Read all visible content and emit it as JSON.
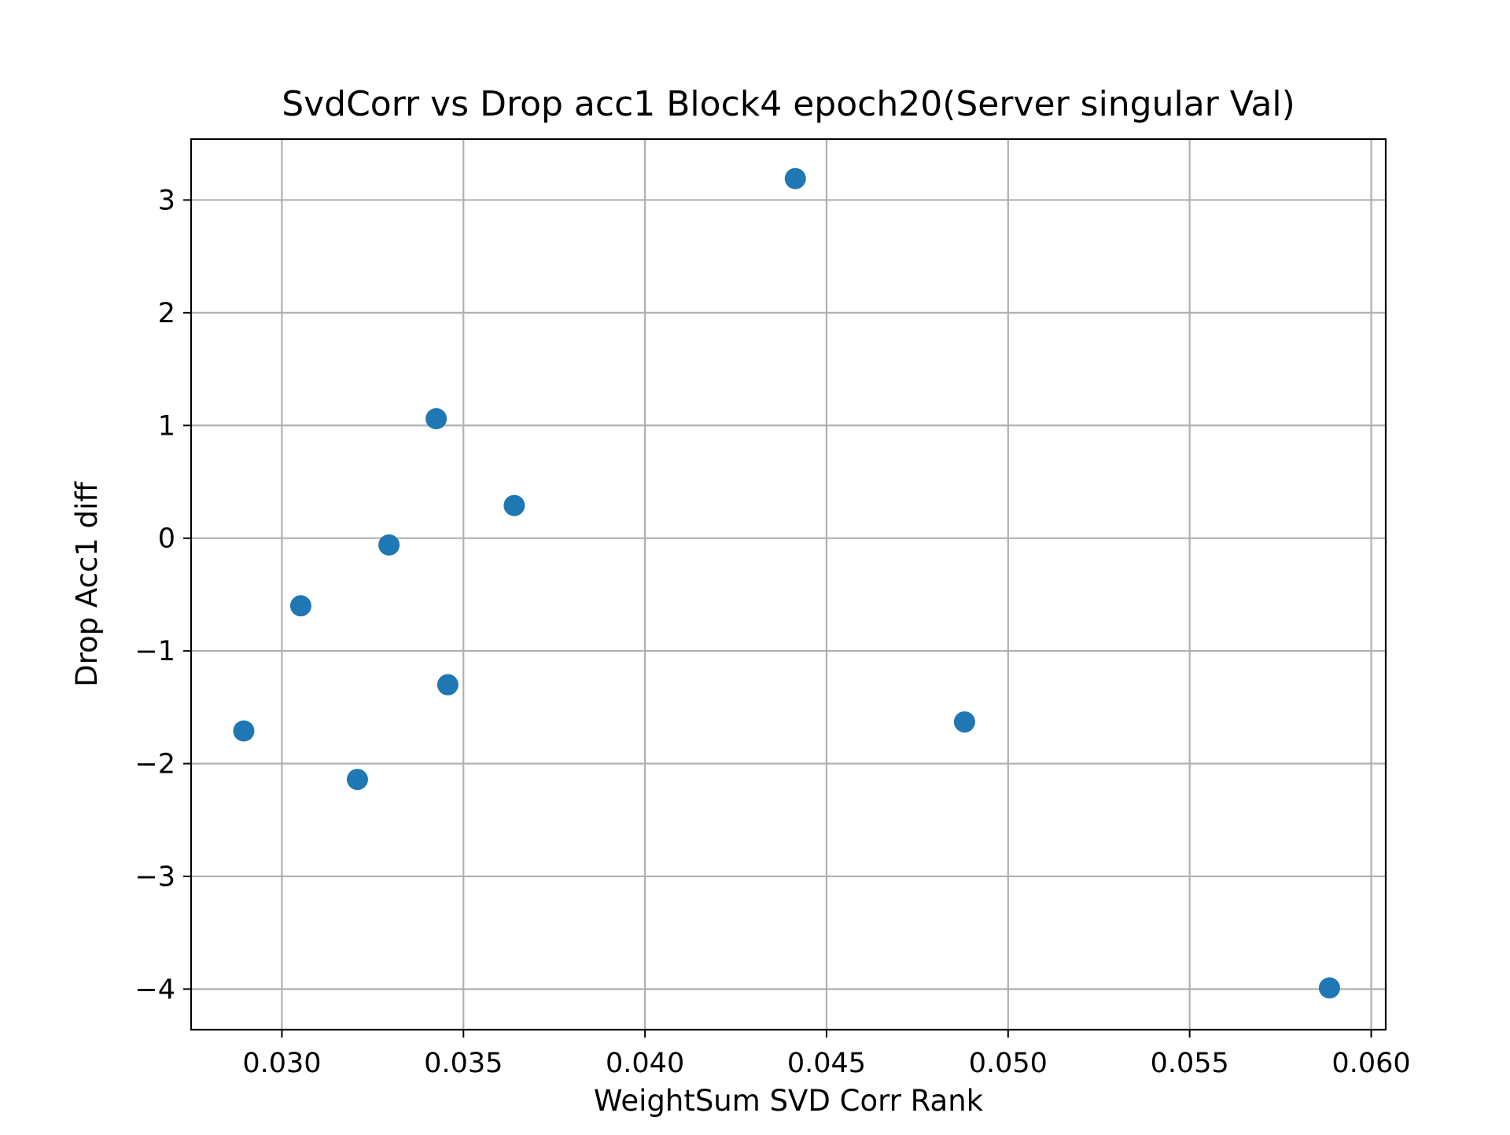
{
  "chart_data": {
    "type": "scatter",
    "title": "SvdCorr vs Drop acc1 Block4 epoch20(Server singular Val)",
    "xlabel": "WeightSum SVD Corr Rank",
    "ylabel": "Drop Acc1 diff",
    "xlim": [
      0.0275,
      0.0604
    ],
    "ylim": [
      -4.36,
      3.54
    ],
    "xticks": [
      0.03,
      0.035,
      0.04,
      0.045,
      0.05,
      0.055,
      0.06
    ],
    "xtick_labels": [
      "0.030",
      "0.035",
      "0.040",
      "0.045",
      "0.050",
      "0.055",
      "0.060"
    ],
    "yticks": [
      -4,
      -3,
      -2,
      -1,
      0,
      1,
      2,
      3
    ],
    "ytick_labels": [
      "−4",
      "−3",
      "−2",
      "−1",
      "0",
      "1",
      "2",
      "3"
    ],
    "grid": true,
    "color": "#1f77b4",
    "x": [
      0.02895,
      0.03052,
      0.03208,
      0.03295,
      0.03425,
      0.03457,
      0.0364,
      0.04414,
      0.0488,
      0.05885
    ],
    "y": [
      -1.71,
      -0.6,
      -2.14,
      -0.06,
      1.06,
      -1.3,
      0.29,
      3.19,
      -1.63,
      -3.99
    ]
  }
}
